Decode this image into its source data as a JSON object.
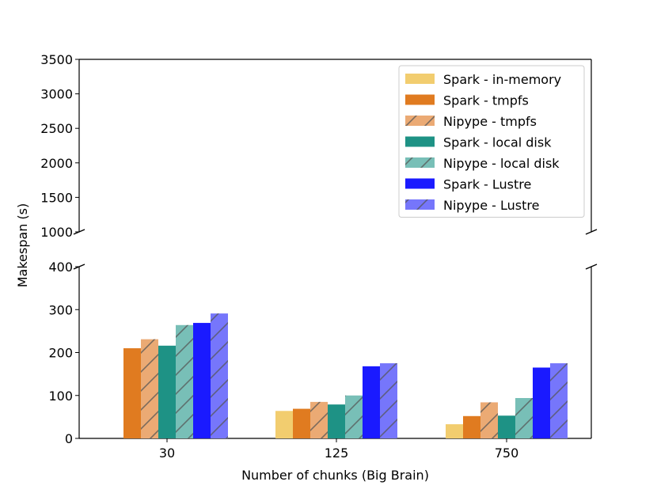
{
  "chart_data": {
    "type": "bar",
    "xlabel": "Number of chunks (Big Brain)",
    "ylabel": "Makespan (s)",
    "categories": [
      "30",
      "125",
      "750"
    ],
    "broken_axis": true,
    "ylim_lower": [
      0,
      400
    ],
    "ylim_upper": [
      1000,
      3500
    ],
    "yticks_lower": [
      "0",
      "100",
      "200",
      "300",
      "400"
    ],
    "yticks_upper": [
      "1000",
      "1500",
      "2000",
      "2500",
      "3000",
      "3500"
    ],
    "legend_position": "top-right",
    "grid": false,
    "series": [
      {
        "name": "Spark - in-memory",
        "color": "#f2cd6f",
        "hatched": false,
        "values": [
          null,
          64,
          33
        ]
      },
      {
        "name": "Spark - tmpfs",
        "color": "#e07b20",
        "hatched": false,
        "values": [
          210,
          69,
          52
        ]
      },
      {
        "name": "Nipype - tmpfs",
        "color": "#ebaa74",
        "hatched": true,
        "values": [
          231,
          85,
          84
        ]
      },
      {
        "name": "Spark - local disk",
        "color": "#1e9285",
        "hatched": false,
        "values": [
          216,
          79,
          53
        ]
      },
      {
        "name": "Nipype - local disk",
        "color": "#78bfb7",
        "hatched": true,
        "values": [
          264,
          100,
          94
        ]
      },
      {
        "name": "Spark - Lustre",
        "color": "#1a1aff",
        "hatched": false,
        "values": [
          269,
          168,
          165
        ]
      },
      {
        "name": "Nipype - Lustre",
        "color": "#7676fb",
        "hatched": true,
        "values": [
          291,
          175,
          175
        ]
      }
    ]
  }
}
